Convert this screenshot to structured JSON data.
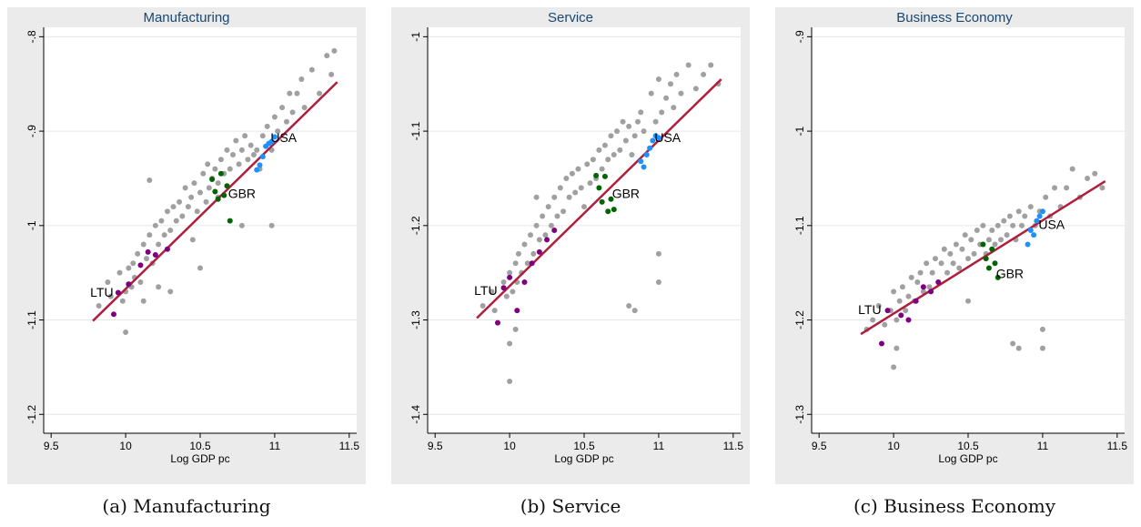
{
  "chart_data": [
    {
      "type": "scatter",
      "title": "Manufacturing",
      "caption": "(a) Manufacturing",
      "xlabel": "Log GDP pc",
      "ylabel": "",
      "xlim": [
        9.45,
        11.55
      ],
      "ylim": [
        -1.22,
        -0.79
      ],
      "xticks": [
        "9.5",
        "10",
        "10.5",
        "11",
        "11.5"
      ],
      "xtick_values": [
        9.5,
        10,
        10.5,
        11,
        11.5
      ],
      "yticks": [
        "-.8",
        "-.9",
        "-1",
        "-1.1",
        "-1.2"
      ],
      "ytick_values": [
        -0.8,
        -0.9,
        -1.0,
        -1.1,
        -1.2
      ],
      "grid": true,
      "fit_line": {
        "x": [
          9.78,
          11.42
        ],
        "y": [
          -1.101,
          -0.848
        ]
      },
      "highlights": [
        {
          "label": "LTU",
          "color": "#7f007f",
          "x": [
            9.92,
            9.95,
            10.02,
            10.1,
            10.15,
            10.2,
            10.28
          ],
          "y": [
            -1.094,
            -1.071,
            -1.062,
            -1.042,
            -1.028,
            -1.031,
            -1.025
          ]
        },
        {
          "label": "GBR",
          "color": "#006400",
          "x": [
            10.58,
            10.6,
            10.62,
            10.64,
            10.66,
            10.68,
            10.7
          ],
          "y": [
            -0.951,
            -0.964,
            -0.972,
            -0.945,
            -0.968,
            -0.958,
            -0.995
          ]
        },
        {
          "label": "USA",
          "color": "#1e90ff",
          "x": [
            10.88,
            10.9,
            10.92,
            10.94,
            10.96,
            10.98,
            11.0
          ],
          "y": [
            -0.941,
            -0.936,
            -0.927,
            -0.916,
            -0.913,
            -0.911,
            -0.906
          ]
        }
      ],
      "labels": [
        {
          "text": "LTU",
          "x": 9.84,
          "y": -1.072
        },
        {
          "text": "GBR",
          "x": 10.78,
          "y": -0.967
        },
        {
          "text": "USA",
          "x": 11.06,
          "y": -0.908
        }
      ],
      "background_points": {
        "color": "#a0a0a0",
        "x": [
          9.82,
          9.88,
          9.9,
          9.96,
          9.98,
          10.0,
          10.02,
          10.04,
          10.05,
          10.06,
          10.08,
          10.1,
          10.12,
          10.12,
          10.14,
          10.16,
          10.18,
          10.2,
          10.22,
          10.24,
          10.26,
          10.28,
          10.3,
          10.32,
          10.34,
          10.36,
          10.38,
          10.4,
          10.42,
          10.44,
          10.46,
          10.48,
          10.5,
          10.52,
          10.54,
          10.55,
          10.56,
          10.58,
          10.6,
          10.62,
          10.64,
          10.66,
          10.68,
          10.7,
          10.72,
          10.74,
          10.76,
          10.78,
          10.8,
          10.82,
          10.84,
          10.86,
          10.88,
          10.9,
          10.92,
          10.95,
          10.98,
          11.0,
          11.02,
          11.05,
          11.08,
          11.1,
          11.12,
          11.15,
          11.18,
          11.2,
          11.25,
          11.3,
          11.35,
          11.38,
          11.4,
          10.16,
          10.5,
          10.0,
          10.78,
          10.98,
          10.3,
          10.45,
          10.62,
          10.22
        ],
        "y": [
          -1.085,
          -1.06,
          -1.075,
          -1.05,
          -1.08,
          -1.07,
          -1.045,
          -1.065,
          -1.04,
          -1.055,
          -1.03,
          -1.06,
          -1.02,
          -1.08,
          -1.035,
          -1.01,
          -1.04,
          -1.0,
          -1.02,
          -0.995,
          -1.01,
          -0.985,
          -1.005,
          -0.98,
          -0.995,
          -0.975,
          -0.99,
          -0.96,
          -0.98,
          -0.97,
          -0.955,
          -0.985,
          -0.965,
          -0.945,
          -0.975,
          -0.935,
          -0.96,
          -0.95,
          -0.94,
          -0.955,
          -0.93,
          -0.945,
          -0.92,
          -0.94,
          -0.925,
          -0.91,
          -0.935,
          -0.92,
          -0.905,
          -0.93,
          -0.915,
          -0.925,
          -0.92,
          -0.94,
          -0.905,
          -0.895,
          -0.92,
          -0.885,
          -0.9,
          -0.875,
          -0.89,
          -0.86,
          -0.88,
          -0.86,
          -0.845,
          -0.875,
          -0.835,
          -0.86,
          -0.82,
          -0.84,
          -0.815,
          -0.952,
          -1.045,
          -1.113,
          -1.0,
          -1.0,
          -1.07,
          -1.015,
          -0.97,
          -1.065
        ]
      }
    },
    {
      "type": "scatter",
      "title": "Service",
      "caption": "(b) Service",
      "xlabel": "Log GDP pc",
      "ylabel": "",
      "xlim": [
        9.45,
        11.55
      ],
      "ylim": [
        -1.42,
        -0.99
      ],
      "xticks": [
        "9.5",
        "10",
        "10.5",
        "11",
        "11.5"
      ],
      "xtick_values": [
        9.5,
        10,
        10.5,
        11,
        11.5
      ],
      "yticks": [
        "-1",
        "-1.1",
        "-1.2",
        "-1.3",
        "-1.4"
      ],
      "ytick_values": [
        -1.0,
        -1.1,
        -1.2,
        -1.3,
        -1.4
      ],
      "grid": true,
      "fit_line": {
        "x": [
          9.78,
          11.42
        ],
        "y": [
          -1.298,
          -1.045
        ]
      },
      "highlights": [
        {
          "label": "LTU",
          "color": "#7f007f",
          "x": [
            9.92,
            9.96,
            10.0,
            10.05,
            10.1,
            10.15,
            10.2,
            10.25,
            10.3
          ],
          "y": [
            -1.303,
            -1.266,
            -1.255,
            -1.29,
            -1.26,
            -1.24,
            -1.228,
            -1.215,
            -1.205
          ]
        },
        {
          "label": "GBR",
          "color": "#006400",
          "x": [
            10.58,
            10.6,
            10.62,
            10.64,
            10.66,
            10.68,
            10.7
          ],
          "y": [
            -1.147,
            -1.16,
            -1.175,
            -1.148,
            -1.185,
            -1.172,
            -1.183
          ]
        },
        {
          "label": "USA",
          "color": "#1e90ff",
          "x": [
            10.88,
            10.9,
            10.92,
            10.94,
            10.96,
            10.98,
            11.0
          ],
          "y": [
            -1.132,
            -1.138,
            -1.125,
            -1.118,
            -1.11,
            -1.105,
            -1.107
          ]
        }
      ],
      "labels": [
        {
          "text": "LTU",
          "x": 9.84,
          "y": -1.27
        },
        {
          "text": "GBR",
          "x": 10.78,
          "y": -1.167
        },
        {
          "text": "USA",
          "x": 11.06,
          "y": -1.108
        }
      ],
      "background_points": {
        "color": "#a0a0a0",
        "x": [
          9.82,
          9.88,
          9.9,
          9.96,
          9.98,
          10.0,
          10.02,
          10.04,
          10.05,
          10.06,
          10.08,
          10.1,
          10.12,
          10.14,
          10.16,
          10.18,
          10.2,
          10.22,
          10.24,
          10.26,
          10.28,
          10.3,
          10.32,
          10.34,
          10.36,
          10.38,
          10.4,
          10.42,
          10.44,
          10.46,
          10.48,
          10.5,
          10.52,
          10.54,
          10.56,
          10.58,
          10.6,
          10.62,
          10.64,
          10.66,
          10.68,
          10.7,
          10.72,
          10.74,
          10.76,
          10.78,
          10.8,
          10.82,
          10.84,
          10.86,
          10.88,
          10.9,
          10.95,
          10.98,
          11.0,
          11.02,
          11.05,
          11.08,
          11.1,
          11.12,
          11.15,
          11.2,
          11.25,
          11.3,
          11.35,
          11.4,
          10.0,
          10.0,
          10.8,
          10.84,
          11.0,
          11.0,
          10.18,
          10.04
        ],
        "y": [
          -1.285,
          -1.27,
          -1.29,
          -1.26,
          -1.275,
          -1.25,
          -1.27,
          -1.24,
          -1.26,
          -1.23,
          -1.25,
          -1.22,
          -1.24,
          -1.21,
          -1.23,
          -1.2,
          -1.215,
          -1.19,
          -1.21,
          -1.18,
          -1.2,
          -1.17,
          -1.19,
          -1.16,
          -1.185,
          -1.15,
          -1.17,
          -1.145,
          -1.165,
          -1.14,
          -1.16,
          -1.18,
          -1.135,
          -1.155,
          -1.13,
          -1.15,
          -1.12,
          -1.14,
          -1.115,
          -1.13,
          -1.105,
          -1.125,
          -1.1,
          -1.12,
          -1.09,
          -1.11,
          -1.095,
          -1.125,
          -1.105,
          -1.09,
          -1.08,
          -1.1,
          -1.06,
          -1.09,
          -1.045,
          -1.08,
          -1.065,
          -1.05,
          -1.075,
          -1.04,
          -1.06,
          -1.03,
          -1.055,
          -1.04,
          -1.03,
          -1.05,
          -1.325,
          -1.365,
          -1.285,
          -1.29,
          -1.23,
          -1.26,
          -1.17,
          -1.31
        ]
      }
    },
    {
      "type": "scatter",
      "title": "Business Economy",
      "caption": "(c) Business Economy",
      "xlabel": "Log GDP pc",
      "ylabel": "",
      "xlim": [
        9.45,
        11.55
      ],
      "ylim": [
        -1.32,
        -0.89
      ],
      "xticks": [
        "9.5",
        "10",
        "10.5",
        "11",
        "11.5"
      ],
      "xtick_values": [
        9.5,
        10,
        10.5,
        11,
        11.5
      ],
      "yticks": [
        "-.9",
        "-1",
        "-1.1",
        "-1.2",
        "-1.3"
      ],
      "ytick_values": [
        -0.9,
        -1.0,
        -1.1,
        -1.2,
        -1.3
      ],
      "grid": true,
      "fit_line": {
        "x": [
          9.78,
          11.42
        ],
        "y": [
          -1.215,
          -1.053
        ]
      },
      "highlights": [
        {
          "label": "LTU",
          "color": "#7f007f",
          "x": [
            9.92,
            9.96,
            10.05,
            10.1,
            10.15,
            10.2,
            10.25,
            10.3
          ],
          "y": [
            -1.225,
            -1.19,
            -1.195,
            -1.2,
            -1.18,
            -1.165,
            -1.17,
            -1.16
          ]
        },
        {
          "label": "GBR",
          "color": "#006400",
          "x": [
            10.6,
            10.62,
            10.64,
            10.66,
            10.68,
            10.7
          ],
          "y": [
            -1.12,
            -1.135,
            -1.145,
            -1.125,
            -1.14,
            -1.155
          ]
        },
        {
          "label": "USA",
          "color": "#1e90ff",
          "x": [
            10.9,
            10.92,
            10.94,
            10.96,
            10.98,
            11.0
          ],
          "y": [
            -1.12,
            -1.105,
            -1.11,
            -1.095,
            -1.09,
            -1.085
          ]
        }
      ],
      "labels": [
        {
          "text": "LTU",
          "x": 9.84,
          "y": -1.19
        },
        {
          "text": "GBR",
          "x": 10.78,
          "y": -1.152
        },
        {
          "text": "USA",
          "x": 11.06,
          "y": -1.1
        }
      ],
      "background_points": {
        "color": "#a0a0a0",
        "x": [
          9.82,
          9.86,
          9.9,
          9.94,
          9.98,
          10.0,
          10.02,
          10.04,
          10.06,
          10.08,
          10.1,
          10.12,
          10.14,
          10.16,
          10.18,
          10.2,
          10.22,
          10.24,
          10.26,
          10.28,
          10.3,
          10.32,
          10.34,
          10.36,
          10.38,
          10.4,
          10.42,
          10.44,
          10.46,
          10.48,
          10.5,
          10.52,
          10.54,
          10.56,
          10.58,
          10.6,
          10.62,
          10.64,
          10.66,
          10.68,
          10.7,
          10.72,
          10.74,
          10.76,
          10.78,
          10.8,
          10.82,
          10.84,
          10.86,
          10.88,
          10.92,
          10.95,
          10.98,
          11.02,
          11.05,
          11.08,
          11.12,
          11.16,
          11.2,
          11.25,
          11.3,
          11.35,
          11.4,
          10.0,
          10.02,
          10.8,
          10.84,
          11.0,
          11.0,
          10.5
        ],
        "y": [
          -1.21,
          -1.2,
          -1.185,
          -1.205,
          -1.19,
          -1.17,
          -1.2,
          -1.18,
          -1.165,
          -1.19,
          -1.175,
          -1.155,
          -1.18,
          -1.16,
          -1.15,
          -1.17,
          -1.14,
          -1.165,
          -1.15,
          -1.135,
          -1.16,
          -1.14,
          -1.125,
          -1.15,
          -1.13,
          -1.14,
          -1.12,
          -1.145,
          -1.125,
          -1.11,
          -1.135,
          -1.115,
          -1.13,
          -1.105,
          -1.12,
          -1.1,
          -1.13,
          -1.115,
          -1.105,
          -1.12,
          -1.1,
          -1.115,
          -1.095,
          -1.11,
          -1.09,
          -1.1,
          -1.115,
          -1.085,
          -1.1,
          -1.09,
          -1.08,
          -1.1,
          -1.085,
          -1.07,
          -1.09,
          -1.06,
          -1.08,
          -1.06,
          -1.04,
          -1.07,
          -1.05,
          -1.045,
          -1.06,
          -1.25,
          -1.23,
          -1.225,
          -1.23,
          -1.21,
          -1.23,
          -1.18
        ]
      }
    }
  ]
}
